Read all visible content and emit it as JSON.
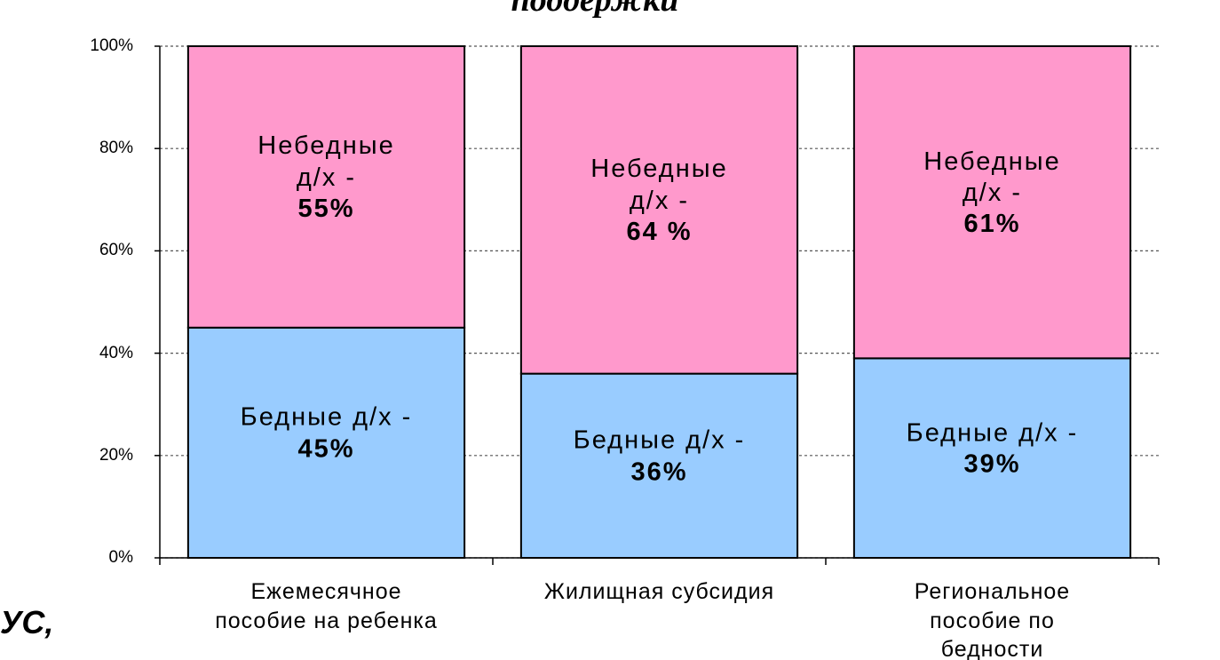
{
  "chart_data": {
    "type": "stacked_bar",
    "title": "поддержки",
    "side_text": "УС,",
    "categories": [
      "Ежемесячное\nпособие на ребенка",
      "Жилищная субсидия",
      "Региональное\nпособие по бедности"
    ],
    "series": [
      {
        "name": "Бедные д/х -",
        "color": "#99ccff",
        "values": [
          45,
          36,
          39
        ],
        "value_labels": [
          "45%",
          "36%",
          "39%"
        ]
      },
      {
        "name": "Небедные\nд/х -",
        "color": "#ff99cc",
        "values": [
          55,
          64,
          61
        ],
        "value_labels": [
          "55%",
          "64 %",
          "61%"
        ]
      }
    ],
    "ylim": [
      0,
      100
    ],
    "yticks": [
      {
        "value": 0,
        "label": "0%"
      },
      {
        "value": 20,
        "label": "20%"
      },
      {
        "value": 40,
        "label": "40%"
      },
      {
        "value": 60,
        "label": "60%"
      },
      {
        "value": 80,
        "label": "80%"
      },
      {
        "value": 100,
        "label": "100%"
      }
    ],
    "grid": true
  }
}
